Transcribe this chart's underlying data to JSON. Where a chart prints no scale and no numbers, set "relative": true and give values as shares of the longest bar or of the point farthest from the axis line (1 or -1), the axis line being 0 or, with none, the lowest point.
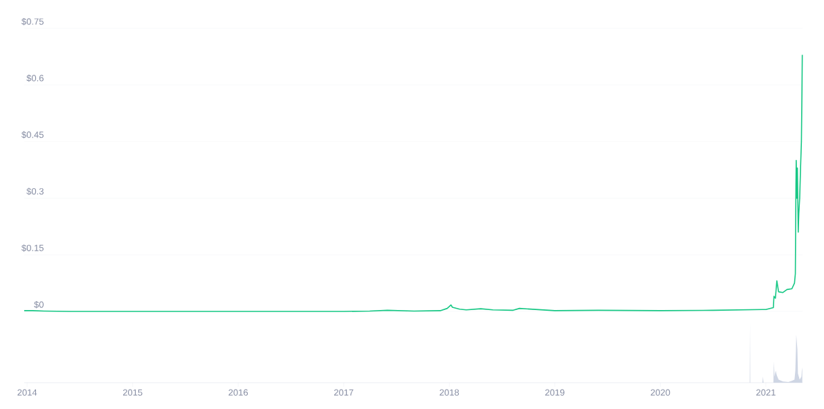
{
  "chart_data": [
    {
      "type": "line",
      "x": [
        "2013-12-22",
        "2014-01-20",
        "2014-03-01",
        "2014-06-01",
        "2014-12-01",
        "2015-06-01",
        "2016-01-01",
        "2016-06-01",
        "2017-01-01",
        "2017-04-01",
        "2017-06-01",
        "2017-09-01",
        "2017-12-01",
        "2017-12-25",
        "2018-01-07",
        "2018-01-12",
        "2018-02-06",
        "2018-03-01",
        "2018-04-20",
        "2018-06-01",
        "2018-08-10",
        "2018-09-01",
        "2018-11-01",
        "2019-01-01",
        "2019-06-01",
        "2020-01-01",
        "2020-07-01",
        "2020-12-20",
        "2021-01-01",
        "2021-01-27",
        "2021-01-29",
        "2021-02-03",
        "2021-02-08",
        "2021-02-14",
        "2021-03-01",
        "2021-03-15",
        "2021-04-01",
        "2021-04-10",
        "2021-04-13",
        "2021-04-15",
        "2021-04-16",
        "2021-04-18",
        "2021-04-20",
        "2021-04-23",
        "2021-04-25",
        "2021-04-28",
        "2021-05-01",
        "2021-05-04",
        "2021-05-06",
        "2021-05-07"
      ],
      "series": [
        {
          "color": "#16c784",
          "values": [
            0.002,
            0.002,
            0.001,
            0,
            0,
            0,
            0,
            0,
            0,
            0.001,
            0.003,
            0.001,
            0.002,
            0.008,
            0.017,
            0.011,
            0.006,
            0.004,
            0.007,
            0.004,
            0.003,
            0.008,
            0.005,
            0.002,
            0.003,
            0.002,
            0.003,
            0.005,
            0.005,
            0.01,
            0.04,
            0.035,
            0.081,
            0.052,
            0.05,
            0.058,
            0.06,
            0.075,
            0.1,
            0.33,
            0.4,
            0.3,
            0.38,
            0.21,
            0.26,
            0.3,
            0.38,
            0.45,
            0.59,
            0.68
          ]
        }
      ],
      "xlim": [
        "2013-12-22",
        "2021-05-08"
      ],
      "xticks": [
        "2014",
        "2015",
        "2016",
        "2017",
        "2018",
        "2019",
        "2020",
        "2021"
      ],
      "ylim": [
        0,
        0.75
      ],
      "yticks": [
        {
          "value": 0,
          "label": "$0"
        },
        {
          "value": 0.15,
          "label": "$0.15"
        },
        {
          "value": 0.3,
          "label": "$0.3"
        },
        {
          "value": 0.45,
          "label": "$0.45"
        },
        {
          "value": 0.6,
          "label": "$0.6"
        },
        {
          "value": 0.75,
          "label": "$0.75"
        }
      ],
      "grid": "y",
      "tick_labels": "y"
    },
    {
      "type": "area",
      "relative": true,
      "x": [
        "2013-12-22",
        "2020-11-05",
        "2020-11-06",
        "2020-11-07",
        "2020-11-08",
        "2020-12-20",
        "2020-12-22",
        "2020-12-24",
        "2021-01-27",
        "2021-01-29",
        "2021-01-31",
        "2021-02-04",
        "2021-02-08",
        "2021-02-14",
        "2021-03-01",
        "2021-03-20",
        "2021-04-01",
        "2021-04-10",
        "2021-04-13",
        "2021-04-15",
        "2021-04-16",
        "2021-04-20",
        "2021-04-22",
        "2021-04-28",
        "2021-05-04",
        "2021-05-06",
        "2021-05-07"
      ],
      "series": [
        {
          "color": "#cfd6e4",
          "values": [
            0,
            0,
            0,
            1,
            0,
            0,
            0.1,
            0,
            0,
            0.35,
            0.1,
            0.2,
            0.12,
            0.05,
            0.02,
            0.01,
            0.03,
            0.05,
            0.2,
            0.53,
            0.79,
            0.55,
            0.15,
            0.05,
            0.1,
            0.25,
            0.2
          ]
        }
      ],
      "xlim": [
        "2013-12-22",
        "2021-05-08"
      ],
      "xticks": [
        "2014",
        "2015",
        "2016",
        "2017",
        "2018",
        "2019",
        "2020",
        "2021"
      ],
      "tick_labels": "x"
    }
  ]
}
